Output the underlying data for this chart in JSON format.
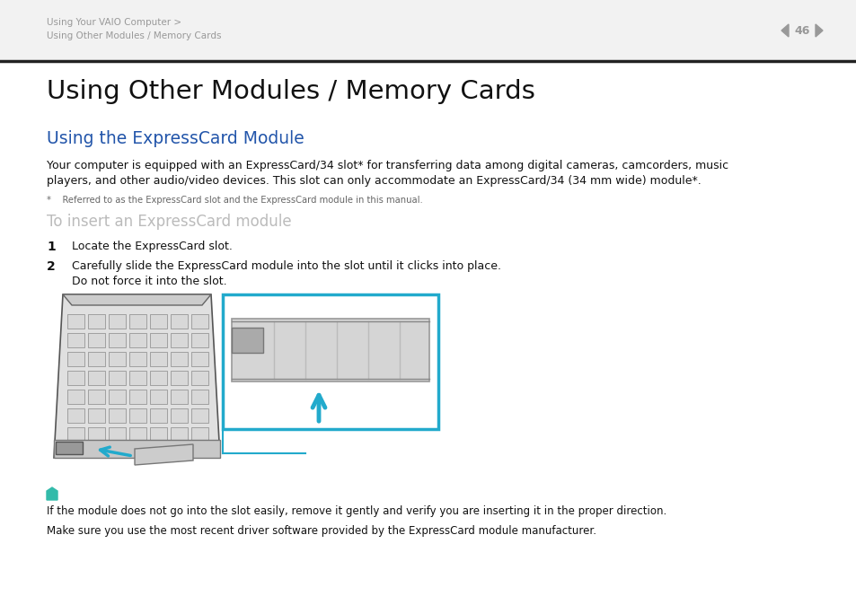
{
  "bg_color": "#ffffff",
  "header_text1": "Using Your VAIO Computer >",
  "header_text2": "Using Other Modules / Memory Cards",
  "header_text_color": "#999999",
  "page_num": "46",
  "divider_color": "#333333",
  "main_title": "Using Other Modules / Memory Cards",
  "section_title": "Using the ExpressCard Module",
  "section_title_color": "#2255aa",
  "body_text1": "Your computer is equipped with an ExpressCard/34 slot* for transferring data among digital cameras, camcorders, music",
  "body_text2": "players, and other audio/video devices. This slot can only accommodate an ExpressCard/34 (34 mm wide) module*.",
  "footnote": "*    Referred to as the ExpressCard slot and the ExpressCard module in this manual.",
  "subheading": "To insert an ExpressCard module",
  "subheading_color": "#bbbbbb",
  "step1_num": "1",
  "step1_text": "Locate the ExpressCard slot.",
  "step2_num": "2",
  "step2_text": "Carefully slide the ExpressCard module into the slot until it clicks into place.",
  "step2_text2": "Do not force it into the slot.",
  "note_text1": "If the module does not go into the slot easily, remove it gently and verify you are inserting it in the proper direction.",
  "note_text2": "Make sure you use the most recent driver software provided by the ExpressCard module manufacturer.",
  "note_icon_color": "#33bbaa",
  "text_color": "#111111",
  "small_text_color": "#666666",
  "cyan_color": "#22aacc"
}
